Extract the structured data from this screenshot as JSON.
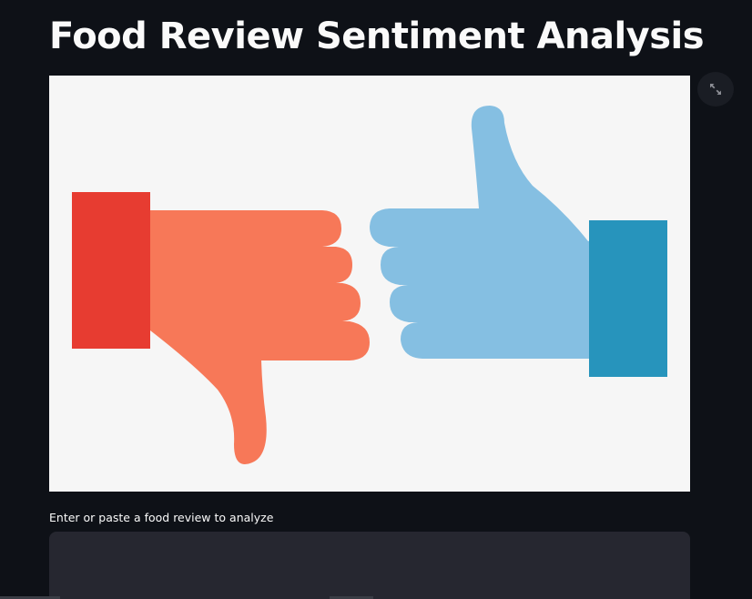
{
  "header": {
    "title": "Food Review Sentiment Analysis"
  },
  "hero_image": {
    "description_icon": "thumbs-down-thumbs-up-illustration",
    "colors": {
      "background": "#f6f6f6",
      "thumbs_down_hand": "#f77858",
      "thumbs_down_cuff": "#e73c31",
      "thumbs_up_hand": "#85bfe2",
      "thumbs_up_cuff": "#2794bc"
    }
  },
  "toolbar": {
    "fullscreen_icon": "expand-icon"
  },
  "review_input": {
    "label": "Enter or paste a food review to analyze",
    "value": "",
    "placeholder": ""
  },
  "theme": {
    "page_background": "#0e1117",
    "input_background": "#262730",
    "text": "#fafafa"
  }
}
